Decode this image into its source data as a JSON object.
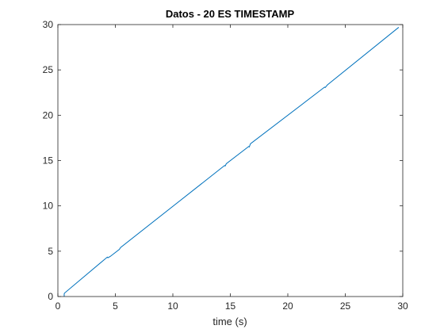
{
  "chart_data": {
    "type": "line",
    "title": "Datos - 20 ES TIMESTAMP",
    "xlabel": "time (s)",
    "ylabel": "",
    "xlim": [
      0,
      30
    ],
    "ylim": [
      0,
      30
    ],
    "xticks": [
      0,
      5,
      10,
      15,
      20,
      25,
      30
    ],
    "yticks": [
      0,
      5,
      10,
      15,
      20,
      25,
      30
    ],
    "grid": false,
    "line_color": "#0072bd",
    "series": [
      {
        "x": [
          0.55,
          0.55,
          0.58,
          4.3,
          4.35,
          4.55,
          5.35,
          5.45,
          14.5,
          14.55,
          14.65,
          16.6,
          16.65,
          16.75,
          23.2,
          23.25,
          23.45,
          29.65
        ],
        "values": [
          0.0,
          0.3,
          0.38,
          4.35,
          4.28,
          4.42,
          5.2,
          5.4,
          14.45,
          14.4,
          14.65,
          16.55,
          16.5,
          16.85,
          23.1,
          23.05,
          23.35,
          29.7
        ]
      }
    ]
  }
}
